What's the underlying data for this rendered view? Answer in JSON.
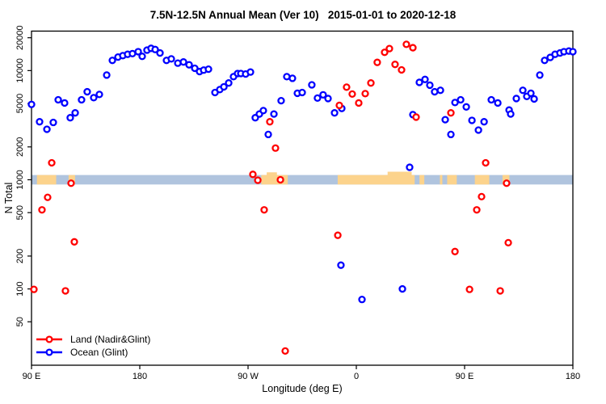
{
  "chart_data": {
    "type": "scatter",
    "title": "7.5N-12.5N Annual Mean (Ver 10)   2015-01-01 to 2020-12-18",
    "xlabel": "Longitude (deg E)",
    "ylabel": "N Total",
    "x_axis": {
      "description": "position in degrees east of left edge; left edge is 90E, axis wraps eastward 90E-180-90W-0-90E-180 (450 deg total)",
      "range_deg": [
        0,
        450
      ],
      "ticks": [
        {
          "pos_deg": 0,
          "label": "90 E"
        },
        {
          "pos_deg": 90,
          "label": "180"
        },
        {
          "pos_deg": 180,
          "label": "90 W"
        },
        {
          "pos_deg": 270,
          "label": "0"
        },
        {
          "pos_deg": 360,
          "label": "90 E"
        },
        {
          "pos_deg": 450,
          "label": "180"
        }
      ]
    },
    "y_axis": {
      "scale": "log10",
      "range": [
        20,
        23000
      ],
      "ticks": [
        50,
        100,
        200,
        500,
        1000,
        2000,
        5000,
        10000,
        20000
      ]
    },
    "legend_position": "bottom-left",
    "series": [
      {
        "name": "Land (Nadir&Glint)",
        "color": "#ff0000",
        "marker": "open-circle",
        "points": [
          [
            2.0,
            99
          ],
          [
            8.7,
            530
          ],
          [
            13.4,
            690
          ],
          [
            16.8,
            1430
          ],
          [
            28.2,
            96
          ],
          [
            32.9,
            930
          ],
          [
            35.6,
            270
          ],
          [
            184.0,
            1120
          ],
          [
            188.1,
            990
          ],
          [
            193.4,
            530
          ],
          [
            198.1,
            3400
          ],
          [
            202.8,
            1950
          ],
          [
            206.9,
            1000
          ],
          [
            210.9,
            27
          ],
          [
            254.6,
            310
          ],
          [
            255.9,
            4800
          ],
          [
            261.9,
            7050
          ],
          [
            266.6,
            6100
          ],
          [
            272.0,
            5050
          ],
          [
            277.4,
            6150
          ],
          [
            282.1,
            7700
          ],
          [
            287.4,
            11900
          ],
          [
            293.5,
            14700
          ],
          [
            297.5,
            15900
          ],
          [
            302.2,
            11400
          ],
          [
            307.6,
            10150
          ],
          [
            311.6,
            17400
          ],
          [
            317.0,
            16200
          ],
          [
            319.7,
            3750
          ],
          [
            348.6,
            4100
          ],
          [
            352.0,
            220
          ],
          [
            364.1,
            99
          ],
          [
            370.1,
            530
          ],
          [
            374.1,
            700
          ],
          [
            377.5,
            1430
          ],
          [
            389.6,
            96
          ],
          [
            394.9,
            930
          ],
          [
            396.3,
            265
          ]
        ]
      },
      {
        "name": "Ocean (Glint)",
        "color": "#0000ff",
        "marker": "open-circle",
        "points": [
          [
            0,
            4900
          ],
          [
            6.7,
            3400
          ],
          [
            12.8,
            2900
          ],
          [
            18.1,
            3350
          ],
          [
            22.2,
            5400
          ],
          [
            27.5,
            5050
          ],
          [
            32.2,
            3700
          ],
          [
            36.3,
            4100
          ],
          [
            41.6,
            5400
          ],
          [
            46.3,
            6400
          ],
          [
            51.7,
            5650
          ],
          [
            56.4,
            6050
          ],
          [
            62.5,
            9100
          ],
          [
            67.2,
            12400
          ],
          [
            71.9,
            13300
          ],
          [
            75.9,
            13700
          ],
          [
            79.9,
            14100
          ],
          [
            83.9,
            14300
          ],
          [
            88.7,
            14900
          ],
          [
            92.0,
            13500
          ],
          [
            96.0,
            15400
          ],
          [
            99.4,
            16000
          ],
          [
            102.8,
            15600
          ],
          [
            106.8,
            14500
          ],
          [
            112.2,
            12400
          ],
          [
            116.2,
            12800
          ],
          [
            121.6,
            11700
          ],
          [
            126.3,
            12000
          ],
          [
            131.0,
            11300
          ],
          [
            135.7,
            10500
          ],
          [
            139.7,
            9800
          ],
          [
            143.1,
            10100
          ],
          [
            147.1,
            10300
          ],
          [
            152.5,
            6300
          ],
          [
            156.5,
            6700
          ],
          [
            159.9,
            7100
          ],
          [
            163.9,
            7700
          ],
          [
            167.9,
            8800
          ],
          [
            171.3,
            9400
          ],
          [
            174.0,
            9400
          ],
          [
            178.0,
            9300
          ],
          [
            182.0,
            9700
          ],
          [
            186.0,
            3700
          ],
          [
            189.4,
            4000
          ],
          [
            192.7,
            4300
          ],
          [
            196.8,
            2600
          ],
          [
            201.5,
            4000
          ],
          [
            207.5,
            5300
          ],
          [
            212.2,
            8800
          ],
          [
            216.9,
            8500
          ],
          [
            221.0,
            6200
          ],
          [
            225.0,
            6300
          ],
          [
            233.0,
            7400
          ],
          [
            237.7,
            5600
          ],
          [
            242.4,
            6000
          ],
          [
            246.5,
            5550
          ],
          [
            251.9,
            4100
          ],
          [
            257.9,
            4500
          ],
          [
            257.2,
            165
          ],
          [
            274.7,
            80
          ],
          [
            308.3,
            100
          ],
          [
            314.3,
            1300
          ],
          [
            317.0,
            3950
          ],
          [
            322.4,
            7800
          ],
          [
            327.1,
            8300
          ],
          [
            331.1,
            7350
          ],
          [
            335.1,
            6400
          ],
          [
            339.9,
            6600
          ],
          [
            343.9,
            3550
          ],
          [
            348.6,
            2600
          ],
          [
            352.0,
            5100
          ],
          [
            356.7,
            5400
          ],
          [
            361.4,
            4650
          ],
          [
            366.1,
            3500
          ],
          [
            371.5,
            2850
          ],
          [
            376.2,
            3400
          ],
          [
            382.2,
            5400
          ],
          [
            387.6,
            5050
          ],
          [
            397.0,
            4350
          ],
          [
            398.3,
            4000
          ],
          [
            403.0,
            5550
          ],
          [
            408.4,
            6600
          ],
          [
            411.7,
            5800
          ],
          [
            415.1,
            6200
          ],
          [
            417.8,
            5500
          ],
          [
            422.5,
            9100
          ],
          [
            426.5,
            12400
          ],
          [
            431.2,
            13200
          ],
          [
            435.2,
            14100
          ],
          [
            439.3,
            14500
          ],
          [
            442.6,
            14900
          ],
          [
            446.7,
            15100
          ],
          [
            450,
            14900
          ]
        ]
      }
    ],
    "map_band": {
      "note": "horizontal coastline strip showing land (tan) vs ocean (light blue) along the 7.5N-12.5N latitude band",
      "ocean_color": "#b0c4de",
      "land_color": "#fcd38c",
      "value_range": [
        905,
        1105
      ],
      "land_patches_deg": [
        [
          4.5,
          20.5
        ],
        [
          30.8,
          36.2
        ],
        [
          191,
          213
        ],
        [
          254.5,
          318.5
        ],
        [
          322.5,
          326.5
        ],
        [
          339.5,
          341.5
        ],
        [
          345.5,
          353.5
        ],
        [
          368.5,
          380.5
        ],
        [
          391.5,
          397.2
        ]
      ],
      "raised_patches": [
        {
          "range_deg": [
            296,
            316
          ],
          "value_top": 1185
        },
        {
          "range_deg": [
            195.5,
            204
          ],
          "value_top": 1170
        }
      ]
    }
  }
}
